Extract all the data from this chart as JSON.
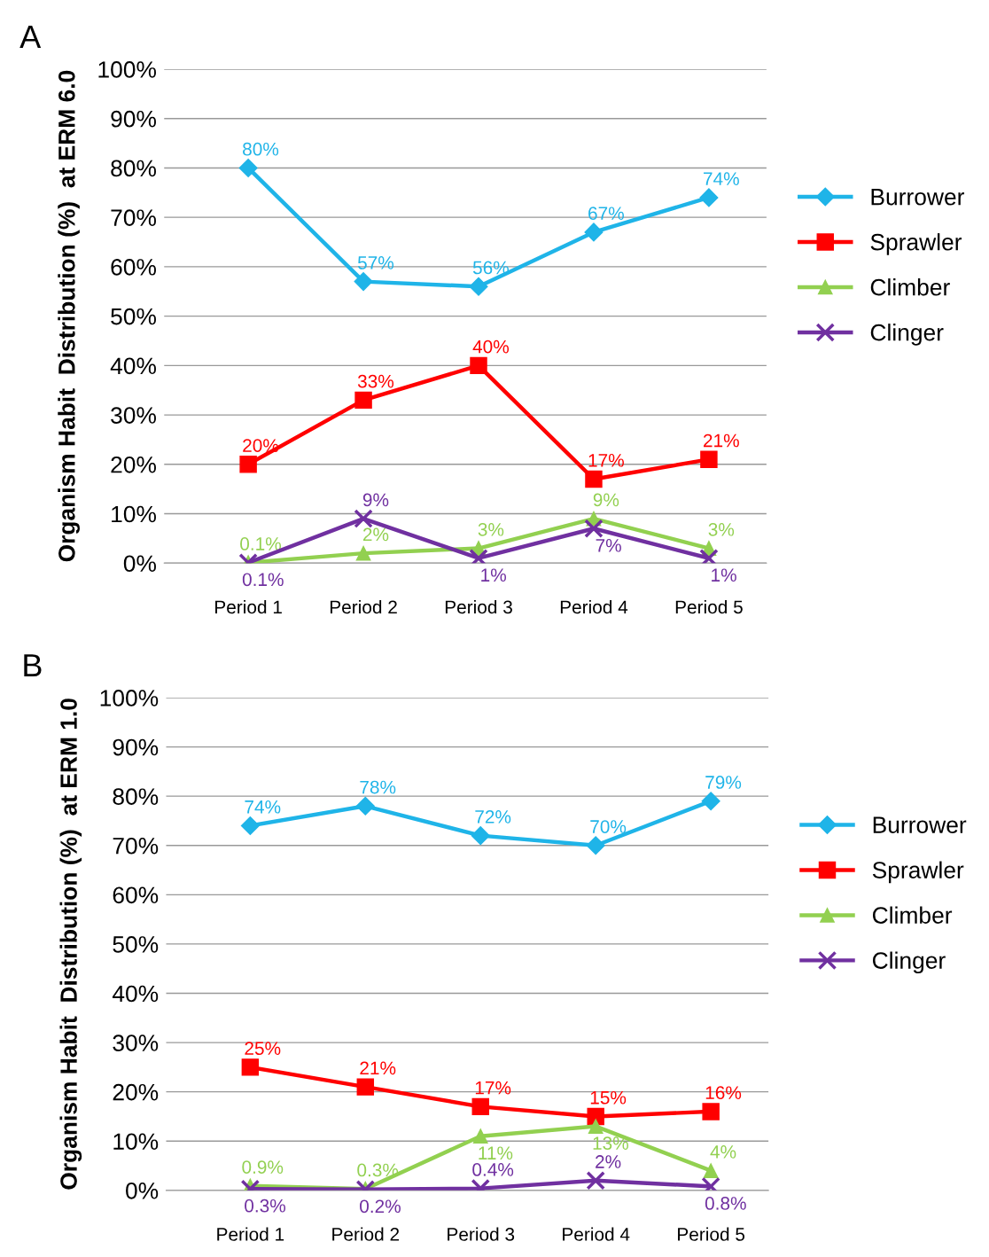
{
  "chart_data": [
    {
      "type": "line",
      "title": "A",
      "ylabel": "Organism Habit  Distribution (%)  at ERM 6.0",
      "categories": [
        "Period 1",
        "Period 2",
        "Period 3",
        "Period 4",
        "Period 5"
      ],
      "ylim": [
        0,
        100
      ],
      "yticks": [
        {
          "value": 0,
          "label": "0%"
        },
        {
          "value": 10,
          "label": "10%"
        },
        {
          "value": 20,
          "label": "20%"
        },
        {
          "value": 30,
          "label": "30%"
        },
        {
          "value": 40,
          "label": "40%"
        },
        {
          "value": 50,
          "label": "50%"
        },
        {
          "value": 60,
          "label": "60%"
        },
        {
          "value": 70,
          "label": "70%"
        },
        {
          "value": 80,
          "label": "80%"
        },
        {
          "value": 90,
          "label": "90%"
        },
        {
          "value": 100,
          "label": "100%"
        }
      ],
      "grid": "y",
      "legend": "right",
      "line_style": "solid",
      "series": [
        {
          "name": "Burrower",
          "color": "#1fb4e8",
          "marker": "diamond",
          "values": [
            80,
            57,
            56,
            67,
            74
          ],
          "value_labels": [
            "80%",
            "57%",
            "56%",
            "67%",
            "74%"
          ]
        },
        {
          "name": "Sprawler",
          "color": "#ff0000",
          "marker": "square",
          "values": [
            20,
            33,
            40,
            17,
            21
          ],
          "value_labels": [
            "20%",
            "33%",
            "40%",
            "17%",
            "21%"
          ]
        },
        {
          "name": "Climber",
          "color": "#92d050",
          "marker": "triangle",
          "values": [
            0.1,
            2,
            3,
            9,
            3
          ],
          "value_labels": [
            "0.1%",
            "2%",
            "3%",
            "9%",
            "3%"
          ]
        },
        {
          "name": "Clinger",
          "color": "#7030a0",
          "marker": "cross",
          "values": [
            0.1,
            9,
            1,
            7,
            1
          ],
          "value_labels": [
            "0.1%",
            "9%",
            "1%",
            "7%",
            "1%"
          ]
        }
      ]
    },
    {
      "type": "line",
      "title": "B",
      "ylabel": "Organism Habit  Distribution (%)  at ERM 1.0",
      "categories": [
        "Period 1",
        "Period 2",
        "Period 3",
        "Period 4",
        "Period 5"
      ],
      "ylim": [
        0,
        100
      ],
      "yticks": [
        {
          "value": 0,
          "label": "0%"
        },
        {
          "value": 10,
          "label": "10%"
        },
        {
          "value": 20,
          "label": "20%"
        },
        {
          "value": 30,
          "label": "30%"
        },
        {
          "value": 40,
          "label": "40%"
        },
        {
          "value": 50,
          "label": "50%"
        },
        {
          "value": 60,
          "label": "60%"
        },
        {
          "value": 70,
          "label": "70%"
        },
        {
          "value": 80,
          "label": "80%"
        },
        {
          "value": 90,
          "label": "90%"
        },
        {
          "value": 100,
          "label": "100%"
        }
      ],
      "grid": "y",
      "legend": "right",
      "line_style": "solid",
      "series": [
        {
          "name": "Burrower",
          "color": "#1fb4e8",
          "marker": "diamond",
          "values": [
            74,
            78,
            72,
            70,
            79
          ],
          "value_labels": [
            "74%",
            "78%",
            "72%",
            "70%",
            "79%"
          ]
        },
        {
          "name": "Sprawler",
          "color": "#ff0000",
          "marker": "square",
          "values": [
            25,
            21,
            17,
            15,
            16
          ],
          "value_labels": [
            "25%",
            "21%",
            "17%",
            "15%",
            "16%"
          ]
        },
        {
          "name": "Climber",
          "color": "#92d050",
          "marker": "triangle",
          "values": [
            0.9,
            0.3,
            11,
            13,
            4
          ],
          "value_labels": [
            "0.9%",
            "0.3%",
            "11%",
            "13%",
            "4%"
          ]
        },
        {
          "name": "Clinger",
          "color": "#7030a0",
          "marker": "cross",
          "values": [
            0.3,
            0.2,
            0.4,
            2,
            0.8
          ],
          "value_labels": [
            "0.3%",
            "0.2%",
            "0.4%",
            "2%",
            "0.8%"
          ]
        }
      ]
    }
  ]
}
